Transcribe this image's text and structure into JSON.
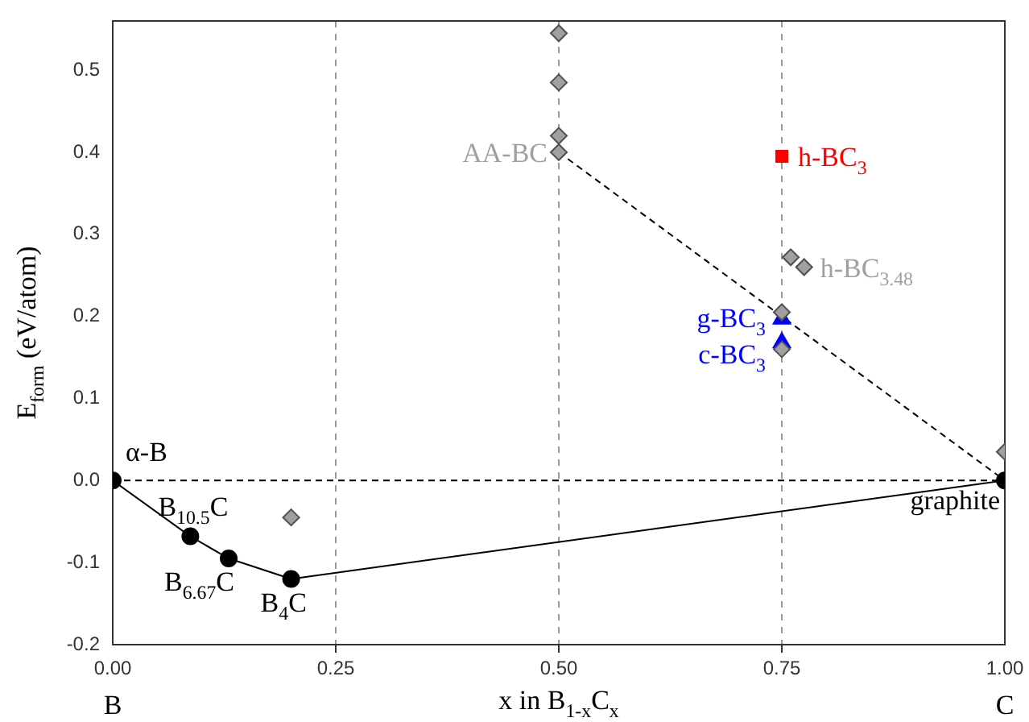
{
  "chart_data": {
    "type": "scatter",
    "xlabel": "x in B$_{1-x}$C$_{x}$",
    "ylabel": "E$_{form}$ (eV/atom)",
    "xlim": [
      0,
      1
    ],
    "xticks": [
      {
        "value": 0,
        "label": "0.00"
      },
      {
        "value": 0.25,
        "label": "0.25"
      },
      {
        "value": 0.5,
        "label": "0.50"
      },
      {
        "value": 0.75,
        "label": "0.75"
      },
      {
        "value": 1,
        "label": "1.00"
      }
    ],
    "ylim": [
      -0.2,
      0.56
    ],
    "yticks": [
      {
        "value": -0.2,
        "label": "-0.2"
      },
      {
        "value": -0.1,
        "label": "-0.1"
      },
      {
        "value": 0,
        "label": "0.0"
      },
      {
        "value": 0.1,
        "label": "0.1"
      },
      {
        "value": 0.2,
        "label": "0.2"
      },
      {
        "value": 0.3,
        "label": "0.3"
      },
      {
        "value": 0.4,
        "label": "0.4"
      },
      {
        "value": 0.5,
        "label": "0.5"
      }
    ],
    "grid": "x",
    "legend": false,
    "ref_lines": [
      {
        "axis": "y",
        "value": 0,
        "color": "#000000",
        "line_style": "dashed"
      }
    ],
    "series": [
      {
        "marker": "diamond",
        "color": "#a0a0a0",
        "x": [
          0.2,
          0.5,
          0.5,
          0.5,
          0.5,
          0.76,
          0.775,
          0.75,
          0.75,
          1
        ],
        "values": [
          -0.045,
          0.545,
          0.485,
          0.42,
          0.4,
          0.272,
          0.26,
          0.205,
          0.16,
          0.035
        ]
      },
      {
        "marker": "square",
        "color": "#ff0000",
        "x": [
          0.75
        ],
        "values": [
          0.395
        ]
      },
      {
        "marker": "triangle",
        "color": "#0000ff",
        "x": [
          0.75,
          0.75
        ],
        "values": [
          0.197,
          0.168
        ]
      },
      {
        "type": "line",
        "marker": "circle",
        "line_style": "solid",
        "color": "#000000",
        "x": [
          0,
          0.087,
          0.13,
          0.2,
          1
        ],
        "values": [
          0,
          -0.068,
          -0.095,
          -0.12,
          0
        ]
      },
      {
        "type": "line",
        "marker": "none",
        "line_style": "dashed",
        "color": "#000000",
        "x": [
          0.5,
          1
        ],
        "values": [
          0.4,
          0
        ]
      }
    ],
    "annotations": [
      {
        "text": "α-B",
        "x": 0,
        "y": 0
      },
      {
        "text": "B$_{10.5}$C",
        "x": 0.087,
        "y": -0.068
      },
      {
        "text": "B$_{6.67}$C",
        "x": 0.13,
        "y": -0.095
      },
      {
        "text": "B$_{4}$C",
        "x": 0.2,
        "y": -0.12
      },
      {
        "text": "AA-BC",
        "x": 0.5,
        "y": 0.4
      },
      {
        "text": "h-BC$_{3}$",
        "x": 0.75,
        "y": 0.395
      },
      {
        "text": "h-BC$_{3.48}$",
        "x": 0.775,
        "y": 0.26
      },
      {
        "text": "g-BC$_{3}$",
        "x": 0.75,
        "y": 0.197
      },
      {
        "text": "c-BC$_{3}$",
        "x": 0.75,
        "y": 0.168
      },
      {
        "text": "graphite",
        "x": 1,
        "y": 0
      },
      "B",
      "C"
    ]
  }
}
